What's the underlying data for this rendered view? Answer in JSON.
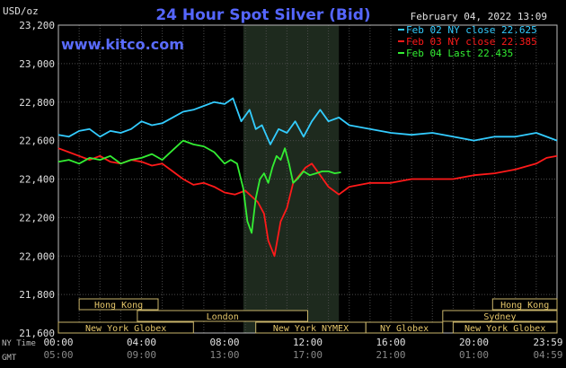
{
  "chart_data": {
    "type": "line",
    "title": "24 Hour Spot Silver (Bid)",
    "ylabel": "USD/oz",
    "timestamp": "February 04, 2022 13:09",
    "watermark": "www.kitco.com",
    "ylim": [
      21.6,
      23.2
    ],
    "xlim": [
      0,
      24
    ],
    "grid": true,
    "legend": "top-right",
    "y_ticks": [
      {
        "value": 21.6,
        "label": "21,600"
      },
      {
        "value": 21.8,
        "label": "21,800"
      },
      {
        "value": 22.0,
        "label": "22,000"
      },
      {
        "value": 22.2,
        "label": "22,200"
      },
      {
        "value": 22.4,
        "label": "22,400"
      },
      {
        "value": 22.6,
        "label": "22,600"
      },
      {
        "value": 22.8,
        "label": "22,800"
      },
      {
        "value": 23.0,
        "label": "23,000"
      },
      {
        "value": 23.2,
        "label": "23,200"
      }
    ],
    "x_axis_rows": [
      {
        "row_label": "NY Time",
        "labels": [
          "00:00",
          "04:00",
          "08:00",
          "12:00",
          "16:00",
          "20:00",
          "23:59"
        ]
      },
      {
        "row_label": "GMT",
        "labels": [
          "05:00",
          "09:00",
          "13:00",
          "17:00",
          "21:00",
          "01:00",
          "04:59"
        ]
      }
    ],
    "x_tick_hours": [
      0,
      4,
      8,
      12,
      16,
      20,
      24
    ],
    "highlight_band": {
      "from": 8.9,
      "to": 13.5
    },
    "sessions": [
      {
        "label": "Hong Kong",
        "start": 1.0,
        "end": 4.8,
        "row": 0
      },
      {
        "label": "Hong Kong",
        "start": 20.9,
        "end": 24.0,
        "row": 0
      },
      {
        "label": "London",
        "start": 3.8,
        "end": 12.0,
        "row": 1
      },
      {
        "label": "Sydney",
        "start": 18.5,
        "end": 24.0,
        "row": 1
      },
      {
        "label": "New York Globex",
        "start": 0.0,
        "end": 6.5,
        "row": 2
      },
      {
        "label": "New York NYMEX",
        "start": 9.5,
        "end": 14.8,
        "row": 2
      },
      {
        "label": "NY Globex",
        "start": 14.8,
        "end": 18.5,
        "row": 2
      },
      {
        "label": "New York Globex",
        "start": 19.0,
        "end": 24.0,
        "row": 2
      }
    ],
    "series": [
      {
        "name": "Feb 02 NY close 22.625",
        "color": "#33ccff",
        "x": [
          0,
          0.5,
          1,
          1.5,
          2,
          2.5,
          3,
          3.5,
          4,
          4.5,
          5,
          5.5,
          6,
          6.5,
          7,
          7.5,
          8,
          8.4,
          8.8,
          9.2,
          9.5,
          9.8,
          10.2,
          10.6,
          11,
          11.4,
          11.8,
          12.2,
          12.6,
          13,
          13.5,
          14,
          15,
          16,
          17,
          18,
          19,
          20,
          21,
          22,
          23,
          24
        ],
        "y": [
          22.63,
          22.62,
          22.65,
          22.66,
          22.62,
          22.65,
          22.64,
          22.66,
          22.7,
          22.68,
          22.69,
          22.72,
          22.75,
          22.76,
          22.78,
          22.8,
          22.79,
          22.82,
          22.7,
          22.76,
          22.66,
          22.68,
          22.58,
          22.66,
          22.64,
          22.7,
          22.62,
          22.7,
          22.76,
          22.7,
          22.72,
          22.68,
          22.66,
          22.64,
          22.63,
          22.64,
          22.62,
          22.6,
          22.62,
          22.62,
          22.64,
          22.6
        ]
      },
      {
        "name": "Feb 03 NY close 22.385",
        "color": "#ff1a1a",
        "x": [
          0,
          0.5,
          1,
          1.5,
          2,
          2.5,
          3,
          3.5,
          4,
          4.5,
          5,
          5.5,
          6,
          6.5,
          7,
          7.5,
          8,
          8.5,
          9,
          9.3,
          9.6,
          9.9,
          10.1,
          10.4,
          10.7,
          11,
          11.3,
          11.6,
          11.9,
          12.2,
          12.6,
          13,
          13.5,
          14,
          15,
          16,
          17,
          18,
          19,
          20,
          21,
          22,
          23,
          23.5,
          24
        ],
        "y": [
          22.56,
          22.54,
          22.52,
          22.5,
          22.52,
          22.49,
          22.48,
          22.5,
          22.49,
          22.47,
          22.48,
          22.44,
          22.4,
          22.37,
          22.38,
          22.36,
          22.33,
          22.32,
          22.34,
          22.31,
          22.28,
          22.22,
          22.08,
          22.0,
          22.18,
          22.25,
          22.38,
          22.42,
          22.46,
          22.48,
          22.42,
          22.36,
          22.32,
          22.36,
          22.38,
          22.38,
          22.4,
          22.4,
          22.4,
          22.42,
          22.43,
          22.45,
          22.48,
          22.51,
          22.52
        ]
      },
      {
        "name": "Feb 04 Last 22.435",
        "color": "#33ee33",
        "x": [
          0,
          0.5,
          1,
          1.5,
          2,
          2.5,
          3,
          3.5,
          4,
          4.5,
          5,
          5.5,
          6,
          6.5,
          7,
          7.5,
          8,
          8.3,
          8.6,
          8.9,
          9.1,
          9.3,
          9.5,
          9.7,
          9.9,
          10.1,
          10.3,
          10.5,
          10.7,
          10.9,
          11.1,
          11.3,
          11.5,
          11.8,
          12.1,
          12.4,
          12.7,
          13,
          13.3,
          13.6
        ],
        "y": [
          22.49,
          22.5,
          22.48,
          22.51,
          22.5,
          22.52,
          22.48,
          22.5,
          22.51,
          22.53,
          22.5,
          22.55,
          22.6,
          22.58,
          22.57,
          22.54,
          22.48,
          22.5,
          22.48,
          22.35,
          22.18,
          22.12,
          22.3,
          22.4,
          22.43,
          22.38,
          22.46,
          22.52,
          22.5,
          22.56,
          22.48,
          22.38,
          22.4,
          22.44,
          22.42,
          22.43,
          22.44,
          22.44,
          22.43,
          22.435
        ]
      }
    ]
  }
}
